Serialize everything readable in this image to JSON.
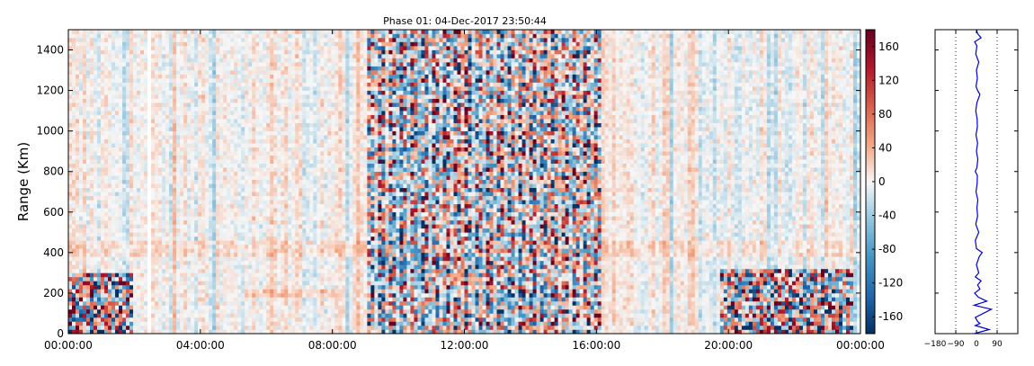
{
  "chart_data": [
    {
      "type": "heatmap",
      "title": "Phase 01: 04-Dec-2017 23:50:44",
      "xlabel": "",
      "ylabel": "Range (Km)",
      "x_ticks": [
        "00:00:00",
        "04:00:00",
        "08:00:00",
        "12:00:00",
        "16:00:00",
        "20:00:00",
        "00:00:00"
      ],
      "x_range_hours": [
        0,
        24
      ],
      "y_ticks": [
        0,
        200,
        400,
        600,
        800,
        1000,
        1200,
        1400
      ],
      "ylim": [
        0,
        1500
      ],
      "colorbar": {
        "ticks": [
          160,
          120,
          80,
          40,
          0,
          -40,
          -80,
          -120,
          -160
        ],
        "range": [
          -180,
          180
        ],
        "colormap": "RdBu_r",
        "colors": {
          "min": "#053061",
          "mid": "#f7f7f7",
          "max": "#67001f"
        }
      },
      "grid": false,
      "gap_hours": [
        2.4,
        2.55
      ],
      "noise_band_hours": [
        9.0,
        16.2
      ],
      "noise_band_std_deg": 100,
      "low_range_noise": [
        {
          "hours": [
            0.0,
            2.0
          ],
          "range_km_max": 300
        },
        {
          "hours": [
            19.7,
            23.8
          ],
          "range_km_max": 330
        }
      ]
    },
    {
      "type": "line",
      "title": "",
      "xlabel": "",
      "ylabel": "",
      "x_ticks": [
        "−180",
        "−90",
        "0",
        "90"
      ],
      "xlim": [
        -180,
        180
      ],
      "ylim": [
        0,
        1500
      ],
      "reference_lines_x": [
        -90,
        90
      ],
      "series_color": "#0000cc",
      "series": [
        {
          "range_km": [
            0,
            20,
            40,
            50,
            60,
            80,
            100,
            120,
            140,
            160,
            180,
            200,
            220,
            240,
            260,
            280,
            300,
            340,
            380,
            400,
            420,
            460,
            500,
            540,
            580,
            620,
            660,
            700,
            740,
            780,
            800,
            820,
            860,
            900,
            940,
            980,
            1020,
            1060,
            1100,
            1140,
            1180,
            1200,
            1220,
            1260,
            1300,
            1340,
            1380,
            1420,
            1440,
            1460,
            1480,
            1500
          ],
          "phase_deg": [
            -10,
            55,
            -5,
            15,
            5,
            -5,
            30,
            65,
            -10,
            45,
            8,
            -8,
            15,
            5,
            20,
            -5,
            10,
            0,
            12,
            25,
            0,
            -5,
            10,
            -3,
            5,
            2,
            6,
            -2,
            3,
            4,
            -5,
            2,
            6,
            0,
            5,
            -2,
            4,
            3,
            -3,
            2,
            15,
            5,
            -2,
            4,
            0,
            10,
            -3,
            2,
            -8,
            20,
            5,
            0
          ]
        }
      ]
    }
  ]
}
